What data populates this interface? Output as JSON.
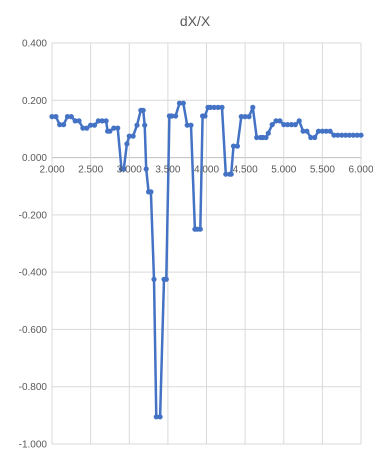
{
  "chart_data": {
    "type": "line",
    "title": "dX/X",
    "xlabel": "",
    "ylabel": "",
    "xlim": [
      2.0,
      6.0
    ],
    "ylim": [
      -1.0,
      0.4
    ],
    "grid": true,
    "x_ticks": [
      2.0,
      2.5,
      3.0,
      3.5,
      4.0,
      4.5,
      5.0,
      5.5,
      6.0
    ],
    "x_tick_labels": [
      "2.000",
      "2.500",
      "3.000",
      "3.500",
      "4.000",
      "4.500",
      "5.000",
      "5.500",
      "6.000"
    ],
    "y_ticks": [
      0.4,
      0.2,
      0.0,
      -0.2,
      -0.4,
      -0.6,
      -0.8,
      -1.0
    ],
    "y_tick_labels": [
      "0.400",
      "0.200",
      "0.000",
      "-0.200",
      "-0.400",
      "-0.600",
      "-0.800",
      "-1.000"
    ],
    "colors": {
      "series": "#4472c4",
      "grid": "#d9d9d9",
      "text": "#595959"
    },
    "series": [
      {
        "x": [
          2.0,
          2.05,
          2.1,
          2.15,
          2.2,
          2.25,
          2.3,
          2.35,
          2.4,
          2.45,
          2.5,
          2.55,
          2.6,
          2.65,
          2.7,
          2.72,
          2.75,
          2.8,
          2.85,
          2.9,
          2.93,
          2.97,
          3.0,
          3.05,
          3.1,
          3.15,
          3.18,
          3.2,
          3.22,
          3.25,
          3.28,
          3.32,
          3.35,
          3.4,
          3.45,
          3.48,
          3.52,
          3.55,
          3.6,
          3.65,
          3.7,
          3.75,
          3.8,
          3.85,
          3.88,
          3.92,
          3.95,
          3.98,
          4.02,
          4.05,
          4.1,
          4.15,
          4.2,
          4.25,
          4.3,
          4.32,
          4.35,
          4.4,
          4.45,
          4.5,
          4.55,
          4.6,
          4.65,
          4.7,
          4.73,
          4.77,
          4.8,
          4.85,
          4.9,
          4.95,
          5.0,
          5.05,
          5.1,
          5.15,
          5.2,
          5.25,
          5.3,
          5.35,
          5.4,
          5.45,
          5.5,
          5.55,
          5.6,
          5.65,
          5.7,
          5.75,
          5.8,
          5.85,
          5.9,
          5.95,
          6.0
        ],
        "values": [
          0.143,
          0.143,
          0.115,
          0.115,
          0.143,
          0.143,
          0.128,
          0.128,
          0.103,
          0.103,
          0.113,
          0.113,
          0.128,
          0.128,
          0.128,
          0.092,
          0.092,
          0.103,
          0.103,
          -0.04,
          -0.04,
          0.048,
          0.075,
          0.075,
          0.113,
          0.165,
          0.165,
          0.113,
          -0.04,
          -0.12,
          -0.12,
          -0.425,
          -0.905,
          -0.905,
          -0.425,
          -0.425,
          0.145,
          0.145,
          0.145,
          0.19,
          0.19,
          0.113,
          0.113,
          -0.25,
          -0.25,
          -0.25,
          0.145,
          0.145,
          0.175,
          0.175,
          0.175,
          0.175,
          0.175,
          -0.058,
          -0.058,
          -0.058,
          0.04,
          0.04,
          0.143,
          0.143,
          0.143,
          0.175,
          0.07,
          0.07,
          0.07,
          0.07,
          0.085,
          0.115,
          0.128,
          0.128,
          0.115,
          0.115,
          0.115,
          0.115,
          0.128,
          0.092,
          0.092,
          0.07,
          0.07,
          0.092,
          0.092,
          0.092,
          0.092,
          0.078,
          0.078,
          0.078,
          0.078,
          0.078,
          0.078,
          0.078,
          0.078
        ]
      }
    ]
  }
}
